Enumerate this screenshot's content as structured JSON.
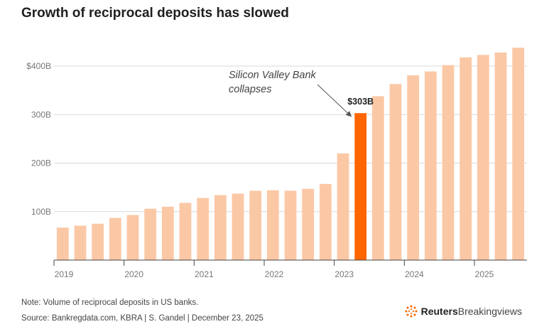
{
  "title": "Growth of reciprocal deposits has slowed",
  "chart_data": {
    "type": "bar",
    "title": "Growth of reciprocal deposits has slowed",
    "xlabel": "",
    "ylabel": "",
    "ylim": [
      0,
      440
    ],
    "y_ticks": [
      100,
      200,
      300,
      400
    ],
    "y_tick_labels": [
      "100B",
      "200B",
      "300B",
      "$400B"
    ],
    "x_ticks": [
      "2019",
      "2020",
      "2021",
      "2022",
      "2023",
      "2024",
      "2025"
    ],
    "categories": [
      "2019 Q1",
      "2019 Q2",
      "2019 Q3",
      "2019 Q4",
      "2020 Q1",
      "2020 Q2",
      "2020 Q3",
      "2020 Q4",
      "2021 Q1",
      "2021 Q2",
      "2021 Q3",
      "2021 Q4",
      "2022 Q1",
      "2022 Q2",
      "2022 Q3",
      "2022 Q4",
      "2023 Q1",
      "2023 Q2",
      "2023 Q3",
      "2023 Q4",
      "2024 Q1",
      "2024 Q2",
      "2024 Q3",
      "2024 Q4",
      "2025 Q1",
      "2025 Q2",
      "2025 Q3"
    ],
    "values": [
      67,
      71,
      75,
      87,
      93,
      106,
      110,
      118,
      128,
      134,
      137,
      143,
      144,
      143,
      147,
      157,
      220,
      303,
      338,
      363,
      381,
      389,
      402,
      418,
      423,
      428,
      438
    ],
    "highlight_index": 17,
    "highlight_label": "$303B",
    "annotation": "Silicon Valley Bank collapses",
    "annotation_lines": [
      "Silicon Valley Bank",
      "collapses"
    ],
    "colors": {
      "bar": "#fbc8a6",
      "highlight": "#ff6600",
      "grid": "#d9d9d9",
      "axis": "#444444"
    }
  },
  "footer": {
    "note": "Note: Volume of reciprocal deposits in US banks.",
    "source": "Source: Bankregdata.com, KBRA | S. Gandel | December 23, 2025",
    "logo_brand": "Reuters",
    "logo_sub": "Breakingviews"
  }
}
